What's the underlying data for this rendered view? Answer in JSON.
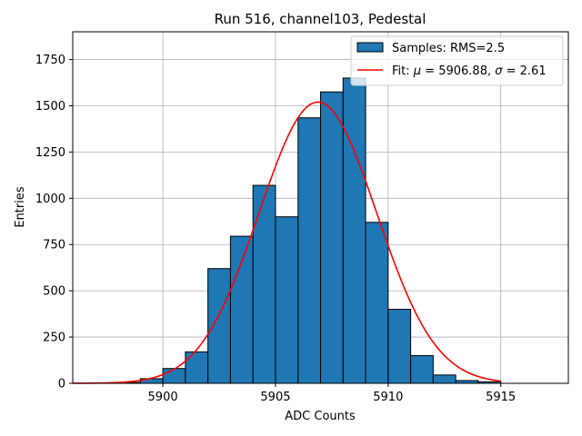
{
  "chart_data": {
    "type": "bar",
    "title": "Run 516, channel103, Pedestal",
    "xlabel": "ADC Counts",
    "ylabel": "Entries",
    "xlim": [
      5896,
      5918
    ],
    "ylim": [
      0,
      1900
    ],
    "xticks": [
      5900,
      5905,
      5910,
      5915
    ],
    "yticks": [
      0,
      250,
      500,
      750,
      1000,
      1250,
      1500,
      1750
    ],
    "grid": true,
    "legend_placement": "top-right",
    "histogram": {
      "name": "Samples: RMS=2.5",
      "color": "#1f77b4",
      "edge_color": "#000000",
      "bins": [
        {
          "left": 5898,
          "right": 5899,
          "value": 5
        },
        {
          "left": 5899,
          "right": 5900,
          "value": 25
        },
        {
          "left": 5900,
          "right": 5901,
          "value": 80
        },
        {
          "left": 5901,
          "right": 5902,
          "value": 170
        },
        {
          "left": 5902,
          "right": 5903,
          "value": 620
        },
        {
          "left": 5903,
          "right": 5904,
          "value": 795
        },
        {
          "left": 5904,
          "right": 5905,
          "value": 1070
        },
        {
          "left": 5905,
          "right": 5906,
          "value": 900
        },
        {
          "left": 5906,
          "right": 5907,
          "value": 1435
        },
        {
          "left": 5907,
          "right": 5908,
          "value": 1575
        },
        {
          "left": 5908,
          "right": 5909,
          "value": 1650
        },
        {
          "left": 5909,
          "right": 5910,
          "value": 870
        },
        {
          "left": 5910,
          "right": 5911,
          "value": 400
        },
        {
          "left": 5911,
          "right": 5912,
          "value": 150
        },
        {
          "left": 5912,
          "right": 5913,
          "value": 45
        },
        {
          "left": 5913,
          "right": 5914,
          "value": 15
        },
        {
          "left": 5914,
          "right": 5915,
          "value": 8
        }
      ]
    },
    "fit": {
      "name": "Fit: μ = 5906.88, σ = 2.61",
      "label_prefix": "Fit: ",
      "mu_symbol": "μ",
      "mu_text": " = 5906.88, ",
      "sigma_symbol": "σ",
      "sigma_text": " = 2.61",
      "color": "#ff0000",
      "mu": 5906.88,
      "sigma": 2.61,
      "amplitude": 1520,
      "x_range": [
        5896,
        5915
      ]
    }
  }
}
